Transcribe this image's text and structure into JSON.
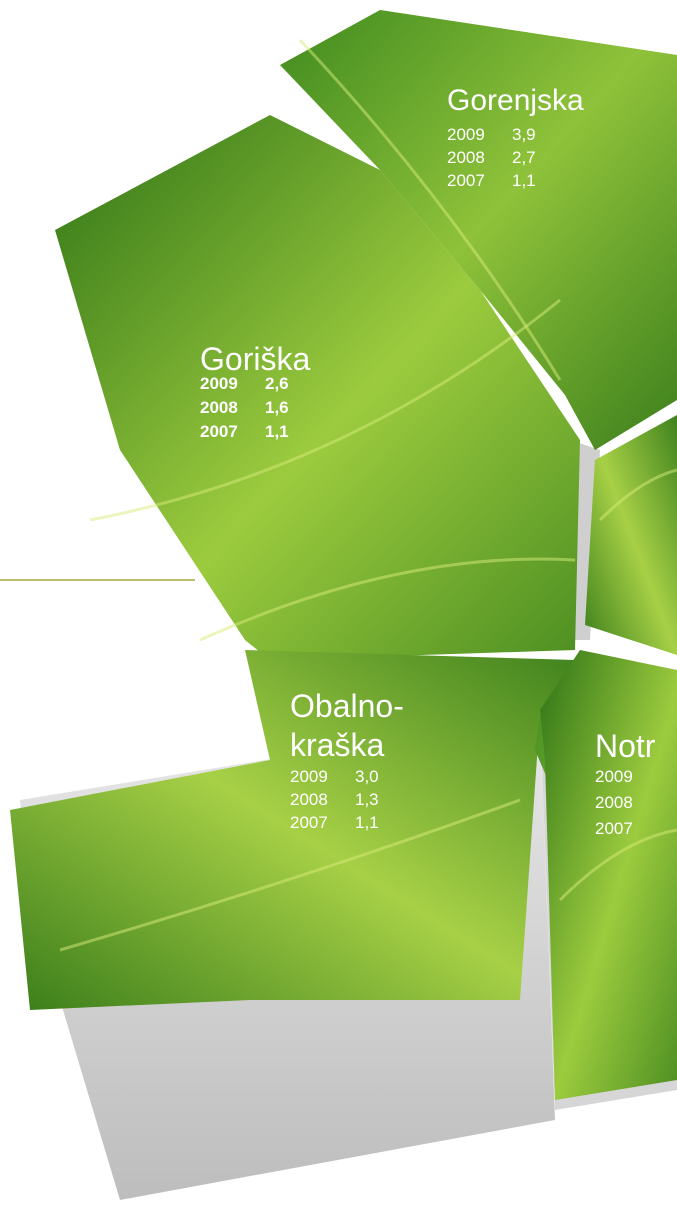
{
  "regions": [
    {
      "name_lines": [
        "Gorenjska"
      ],
      "rows": [
        {
          "year": 2009,
          "value": "3,9"
        },
        {
          "year": 2008,
          "value": "2,7"
        },
        {
          "year": 2007,
          "value": "1,1"
        }
      ]
    },
    {
      "name_lines": [
        "Goriška"
      ],
      "rows": [
        {
          "year": 2009,
          "value": "2,6"
        },
        {
          "year": 2008,
          "value": "1,6"
        },
        {
          "year": 2007,
          "value": "1,1"
        }
      ]
    },
    {
      "name_lines": [
        "Obalno-",
        "kraška"
      ],
      "rows": [
        {
          "year": 2009,
          "value": "3,0"
        },
        {
          "year": 2008,
          "value": "1,3"
        },
        {
          "year": 2007,
          "value": "1,1"
        }
      ]
    },
    {
      "name_lines": [
        "Notr"
      ],
      "rows": [
        {
          "year": 2009
        },
        {
          "year": 2008
        },
        {
          "year": 2007
        }
      ]
    }
  ]
}
